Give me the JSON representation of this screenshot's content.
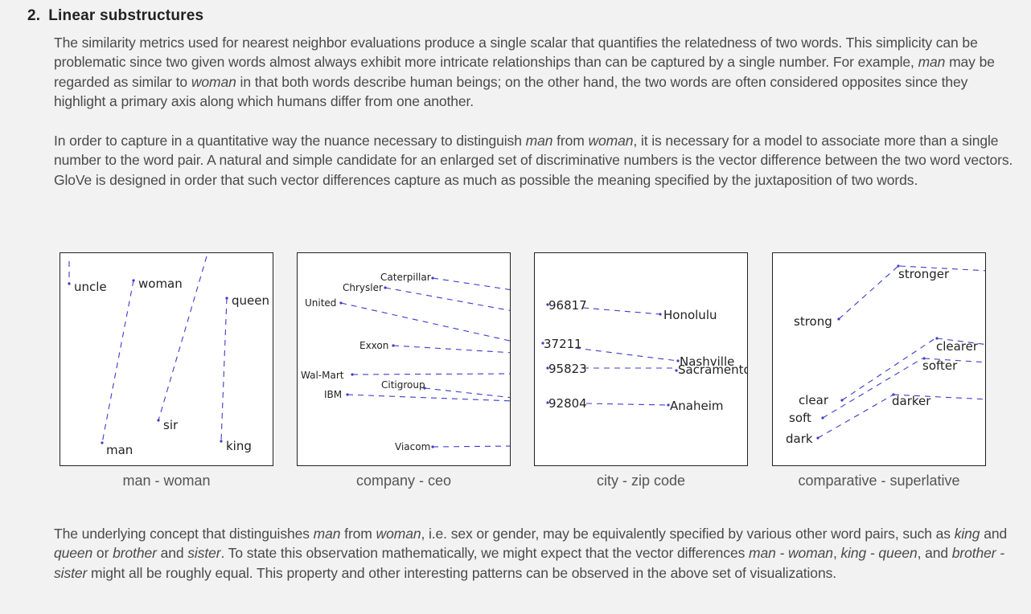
{
  "section": {
    "number": "2.",
    "title": "Linear substructures"
  },
  "paragraphs": {
    "p1": [
      {
        "t": "The similarity metrics used for nearest neighbor evaluations produce a single scalar that quantifies the relatedness of two words. This simplicity can be problematic since two given words almost always exhibit more intricate relationships than can be captured by a single number. For example, "
      },
      {
        "t": "man",
        "i": true
      },
      {
        "t": " may be regarded as similar to "
      },
      {
        "t": "woman",
        "i": true
      },
      {
        "t": " in that both words describe human beings; on the other hand, the two words are often considered opposites since they highlight a primary axis along which humans differ from one another."
      }
    ],
    "p2": [
      {
        "t": "In order to capture in a quantitative way the nuance necessary to distinguish "
      },
      {
        "t": "man",
        "i": true
      },
      {
        "t": " from "
      },
      {
        "t": "woman",
        "i": true
      },
      {
        "t": ", it is necessary for a model to associate more than a single number to the word pair. A natural and simple candidate for an enlarged set of discriminative numbers is the vector difference between the two word vectors. GloVe is designed in order that such vector differences capture as much as possible the meaning specified by the juxtaposition of two words."
      }
    ],
    "p3": [
      {
        "t": "The underlying concept that distinguishes "
      },
      {
        "t": "man",
        "i": true
      },
      {
        "t": " from "
      },
      {
        "t": "woman",
        "i": true
      },
      {
        "t": ", i.e. sex or gender, may be equivalently specified by various other word pairs, such as "
      },
      {
        "t": "king",
        "i": true
      },
      {
        "t": " and "
      },
      {
        "t": "queen",
        "i": true
      },
      {
        "t": " or "
      },
      {
        "t": "brother",
        "i": true
      },
      {
        "t": " and "
      },
      {
        "t": "sister",
        "i": true
      },
      {
        "t": ". To state this observation mathematically, we might expect that the vector differences "
      },
      {
        "t": "man - woman",
        "i": true
      },
      {
        "t": ", "
      },
      {
        "t": "king - queen",
        "i": true
      },
      {
        "t": ", and "
      },
      {
        "t": "brother - sister",
        "i": true
      },
      {
        "t": " might all be roughly equal. This property and other interesting patterns can be observed in the above set of visualizations."
      }
    ]
  },
  "figures": [
    {
      "caption": "man - woman",
      "labels": [
        "uncle",
        "woman",
        "queen",
        "sir",
        "man",
        "king"
      ]
    },
    {
      "caption": "company - ceo",
      "labels": [
        "Caterpillar",
        "Chrysler",
        "United",
        "Exxon",
        "Wal-Mart",
        "Citigroup",
        "IBM",
        "Viacom"
      ]
    },
    {
      "caption": "city - zip code",
      "labels": [
        "96817",
        "Honolulu",
        "37211",
        "Nashville",
        "95823",
        "Sacramento",
        "92804",
        "Anaheim"
      ]
    },
    {
      "caption": "comparative - superlative",
      "labels": [
        "stronger",
        "strong",
        "clearer",
        "softer",
        "clear",
        "darker",
        "soft",
        "dark"
      ]
    }
  ],
  "colors": {
    "line": "#3c3cc8",
    "background": "#f2f2f2",
    "text": "#4a4a4a"
  }
}
